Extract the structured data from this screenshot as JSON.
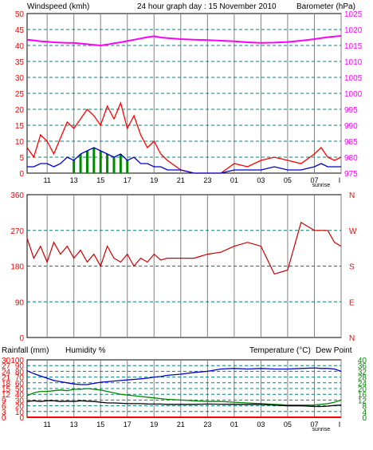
{
  "header": {
    "left_label": "Windspeed (kmh)",
    "title": "24 hour graph day : 15 November 2010",
    "right_label": "Barometer (hPa)"
  },
  "colors": {
    "wind": "#ff0000",
    "gust": "#dd0000",
    "avg_wind": "#0000cc",
    "green": "#008800",
    "baro": "#ff00ff",
    "temp": "#0000cc",
    "dew": "#000000",
    "humidity_green": "#008800",
    "dir": "#cc0000",
    "grid": "#808080",
    "bg": "#ffffff"
  },
  "hour_labels": [
    "11",
    "13",
    "15",
    "17",
    "19",
    "21",
    "23",
    "01",
    "03",
    "05",
    "07",
    "I"
  ],
  "sunrise_label": "sunrise",
  "chart_data": [
    {
      "type": "line",
      "title": "24 hour graph day : 15 November 2010",
      "ylabel": "Windspeed (kmh)",
      "y2label": "Barometer (hPa)",
      "ylim": [
        0,
        50
      ],
      "y_ticks": [
        0,
        5,
        10,
        15,
        20,
        25,
        30,
        35,
        40,
        45,
        50
      ],
      "y2lim": [
        975,
        1025
      ],
      "y2_ticks": [
        975,
        980,
        985,
        990,
        995,
        1000,
        1005,
        1010,
        1015,
        1020,
        1025
      ],
      "x_ticks": [
        "11",
        "13",
        "15",
        "17",
        "19",
        "21",
        "23",
        "01",
        "03",
        "05",
        "07",
        "I"
      ],
      "x": [
        9.5,
        10,
        10.5,
        11,
        11.5,
        12,
        12.5,
        13,
        13.5,
        14,
        14.5,
        15,
        15.5,
        16,
        16.5,
        17,
        17.5,
        18,
        18.5,
        19,
        19.5,
        20,
        21,
        22,
        23,
        24,
        25,
        26,
        27,
        28,
        29,
        30,
        31,
        31.5,
        32,
        32.5,
        33
      ],
      "series": [
        {
          "axis": "left",
          "color": "#ff0000",
          "values": [
            8,
            5,
            12,
            10,
            6,
            11,
            16,
            14,
            17,
            20,
            18,
            15,
            21,
            17,
            22,
            14,
            18,
            12,
            8,
            10,
            6,
            4,
            1,
            0,
            0,
            0,
            3,
            2,
            4,
            5,
            4,
            3,
            6,
            8,
            5,
            4,
            5
          ]
        },
        {
          "axis": "left",
          "color": "#0000cc",
          "values": [
            2,
            2,
            3,
            3,
            2,
            3,
            5,
            4,
            6,
            7,
            8,
            7,
            6,
            5,
            6,
            4,
            5,
            3,
            3,
            2,
            2,
            1,
            1,
            0,
            0,
            0,
            1,
            1,
            1,
            2,
            1,
            1,
            2,
            3,
            2,
            2,
            2
          ]
        },
        {
          "axis": "right",
          "color": "#ff00ff",
          "values": [
            1016.8,
            1016.6,
            1016.3,
            1016.2,
            1016.0,
            1015.9,
            1015.8,
            1015.8,
            1015.6,
            1015.4,
            1015.2,
            1015.0,
            1015.3,
            1015.7,
            1016.0,
            1016.4,
            1016.8,
            1017.2,
            1017.6,
            1017.9,
            1017.5,
            1017.3,
            1017.0,
            1016.8,
            1016.7,
            1016.5,
            1016.3,
            1016.0,
            1015.8,
            1015.9,
            1016.1,
            1016.5,
            1017.0,
            1017.3,
            1017.6,
            1017.8,
            1018.0
          ]
        }
      ]
    },
    {
      "type": "line",
      "y_ticks": [
        360,
        270,
        180,
        90,
        0
      ],
      "ylim": [
        0,
        360
      ],
      "y2_ticks": [
        "N",
        "W",
        "S",
        "E",
        "N"
      ],
      "x_ticks": [
        "11",
        "13",
        "15",
        "17",
        "19",
        "21",
        "23",
        "01",
        "03",
        "05",
        "07",
        "I"
      ],
      "x": [
        9.5,
        10,
        10.5,
        11,
        11.5,
        12,
        12.5,
        13,
        13.5,
        14,
        14.5,
        15,
        15.5,
        16,
        16.5,
        17,
        17.5,
        18,
        18.5,
        19,
        19.5,
        20,
        21,
        22,
        23,
        24,
        25,
        26,
        27,
        28,
        29,
        30,
        31,
        31.5,
        32,
        32.5,
        33
      ],
      "series": [
        {
          "color": "#cc0000",
          "values": [
            250,
            200,
            230,
            190,
            240,
            210,
            230,
            200,
            220,
            190,
            210,
            180,
            230,
            200,
            190,
            210,
            180,
            200,
            190,
            210,
            195,
            200,
            200,
            200,
            210,
            215,
            230,
            240,
            230,
            160,
            170,
            290,
            270,
            270,
            270,
            240,
            230
          ]
        }
      ]
    },
    {
      "type": "line",
      "ylabel": "Rainfall (mm)",
      "ylabel2": "Humidity %",
      "y2label": "Temperature (°C)",
      "y2label2": "Dew Point",
      "ylim": [
        0,
        30
      ],
      "rain_ticks": [
        0,
        3,
        6,
        9,
        12,
        15,
        18,
        21,
        24,
        27,
        30
      ],
      "humidity_ticks": [
        0,
        10,
        20,
        30,
        40,
        50,
        60,
        70,
        80,
        90,
        100
      ],
      "temp_ticks": [
        0,
        4,
        8,
        12,
        16,
        20,
        24,
        28,
        32,
        36,
        40
      ],
      "x_ticks": [
        "11",
        "13",
        "15",
        "17",
        "19",
        "21",
        "23",
        "01",
        "03",
        "05",
        "07",
        "I"
      ],
      "x": [
        9.5,
        10,
        10.5,
        11,
        11.5,
        12,
        12.5,
        13,
        13.5,
        14,
        14.5,
        15,
        15.5,
        16,
        16.5,
        17,
        17.5,
        18,
        18.5,
        19,
        19.5,
        20,
        21,
        22,
        23,
        24,
        25,
        26,
        27,
        28,
        29,
        30,
        31,
        31.5,
        32,
        32.5,
        33
      ],
      "series": [
        {
          "color": "#0000cc",
          "values": [
            81,
            76,
            72,
            68,
            64,
            62,
            60,
            58,
            57,
            57,
            59,
            61,
            62,
            63,
            64,
            65,
            66,
            67,
            68,
            70,
            71,
            73,
            75,
            78,
            80,
            84,
            85,
            84,
            85,
            84,
            84,
            85,
            86,
            85,
            85,
            84,
            80
          ]
        },
        {
          "color": "#008800",
          "values": [
            15,
            17,
            18,
            18,
            18.5,
            19,
            18.5,
            19.5,
            19.5,
            20,
            19.5,
            19,
            18,
            17,
            16,
            15.5,
            15,
            14.5,
            14,
            13.5,
            13,
            12.5,
            12,
            11.5,
            11,
            11,
            10.5,
            10,
            9.5,
            9,
            8.5,
            8.5,
            8.5,
            9,
            9.5,
            10.5,
            12
          ]
        },
        {
          "color": "#000000",
          "values": [
            11,
            11.5,
            11,
            11.5,
            11.5,
            11,
            11.2,
            11,
            11.5,
            11.2,
            11,
            10.5,
            10,
            10,
            9.8,
            9.5,
            9.5,
            9.5,
            9.3,
            9.2,
            9.2,
            9,
            9,
            9,
            9.2,
            9.1,
            9,
            9,
            9,
            8.5,
            8,
            8,
            7.5,
            7.5,
            7.8,
            8.2,
            8.5
          ]
        }
      ]
    }
  ],
  "panel3_header": {
    "rain_label": "Rainfall (mm)",
    "humidity_label": "Humidity %",
    "temp_label": "Temperature (°C)",
    "dew_label": "Dew Point"
  }
}
